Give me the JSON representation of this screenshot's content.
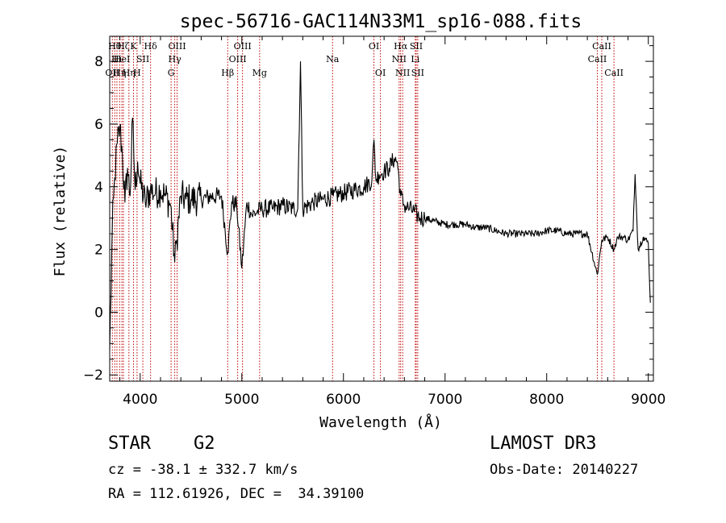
{
  "chart_data": {
    "type": "line",
    "title": "spec-56716-GAC114N33M1_sp16-088.fits",
    "xlabel": "Wavelength (Å)",
    "ylabel": "Flux (relative)",
    "xlim": [
      3700,
      9050
    ],
    "ylim": [
      -2.2,
      8.8
    ],
    "x_ticks": [
      4000,
      5000,
      6000,
      7000,
      8000,
      9000
    ],
    "y_ticks": [
      -2,
      0,
      2,
      4,
      6,
      8
    ],
    "grid": false,
    "series": [
      {
        "name": "flux",
        "color": "#000000",
        "x": [
          3700,
          3725,
          3750,
          3775,
          3800,
          3825,
          3850,
          3875,
          3900,
          3925,
          3950,
          3975,
          4000,
          4050,
          4100,
          4150,
          4200,
          4250,
          4300,
          4340,
          4360,
          4400,
          4450,
          4500,
          4600,
          4700,
          4800,
          4861,
          4900,
          4950,
          5000,
          5050,
          5100,
          5150,
          5200,
          5300,
          5400,
          5500,
          5550,
          5577,
          5600,
          5700,
          5800,
          5900,
          6000,
          6100,
          6200,
          6280,
          6300,
          6320,
          6350,
          6400,
          6450,
          6500,
          6530,
          6563,
          6600,
          6650,
          6700,
          6750,
          6800,
          6900,
          7000,
          7100,
          7200,
          7300,
          7400,
          7500,
          7600,
          7700,
          7800,
          7900,
          8000,
          8100,
          8200,
          8300,
          8400,
          8498,
          8542,
          8600,
          8662,
          8700,
          8750,
          8800,
          8850,
          8870,
          8900,
          8950,
          9000,
          9020
        ],
        "values": [
          -1.2,
          2.6,
          4.3,
          5.4,
          5.9,
          5.0,
          3.5,
          4.6,
          3.7,
          6.2,
          3.9,
          4.8,
          4.1,
          3.5,
          3.9,
          3.8,
          3.9,
          3.7,
          3.4,
          1.6,
          2.3,
          3.7,
          3.6,
          3.6,
          3.6,
          3.7,
          3.7,
          1.9,
          3.5,
          3.4,
          1.4,
          3.5,
          3.1,
          3.2,
          3.3,
          3.3,
          3.4,
          3.3,
          3.3,
          8.0,
          3.3,
          3.5,
          3.6,
          3.7,
          3.8,
          3.9,
          4.0,
          4.2,
          5.5,
          4.2,
          4.4,
          4.5,
          4.6,
          4.9,
          4.8,
          3.7,
          3.4,
          3.3,
          3.2,
          3.0,
          3.0,
          2.9,
          2.8,
          2.8,
          2.8,
          2.7,
          2.7,
          2.6,
          2.5,
          2.5,
          2.5,
          2.5,
          2.6,
          2.6,
          2.5,
          2.5,
          2.5,
          1.2,
          2.3,
          2.4,
          2.0,
          2.4,
          2.4,
          2.3,
          2.6,
          4.4,
          2.0,
          2.4,
          2.2,
          0.3
        ]
      }
    ],
    "lines": [
      {
        "x": 3726,
        "row": 3,
        "label": "OII"
      },
      {
        "x": 3750,
        "row": 1,
        "label": "Hθ"
      },
      {
        "x": 3771,
        "row": 2,
        "label": "Hι"
      },
      {
        "x": 3798,
        "row": 3,
        "label": "Hη"
      },
      {
        "x": 3820,
        "row": 2,
        "label": "HeI"
      },
      {
        "x": 3835,
        "row": 1,
        "label": "Hζ"
      },
      {
        "x": 3889,
        "row": 3,
        "label": "Hη"
      },
      {
        "x": 3934,
        "row": 1,
        "label": "K"
      },
      {
        "x": 3969,
        "row": 3,
        "label": "H"
      },
      {
        "x": 4026,
        "row": 2,
        "label": "SII"
      },
      {
        "x": 4102,
        "row": 1,
        "label": "Hδ"
      },
      {
        "x": 4304,
        "row": 3,
        "label": "G"
      },
      {
        "x": 4340,
        "row": 2,
        "label": "Hγ"
      },
      {
        "x": 4363,
        "row": 1,
        "label": "OIII"
      },
      {
        "x": 4861,
        "row": 3,
        "label": "Hβ"
      },
      {
        "x": 4959,
        "row": 2,
        "label": "OIII"
      },
      {
        "x": 5007,
        "row": 1,
        "label": "OIII"
      },
      {
        "x": 5175,
        "row": 3,
        "label": "Mg"
      },
      {
        "x": 5893,
        "row": 2,
        "label": "Na"
      },
      {
        "x": 6300,
        "row": 1,
        "label": "OI"
      },
      {
        "x": 6364,
        "row": 3,
        "label": "OI"
      },
      {
        "x": 6548,
        "row": 2,
        "label": "NII"
      },
      {
        "x": 6563,
        "row": 1,
        "label": "Hα"
      },
      {
        "x": 6583,
        "row": 3,
        "label": "NII"
      },
      {
        "x": 6707,
        "row": 2,
        "label": "Li"
      },
      {
        "x": 6716,
        "row": 1,
        "label": "SII"
      },
      {
        "x": 6731,
        "row": 3,
        "label": "SII"
      },
      {
        "x": 8498,
        "row": 2,
        "label": "CaII"
      },
      {
        "x": 8542,
        "row": 1,
        "label": "CaII"
      },
      {
        "x": 8662,
        "row": 3,
        "label": "CaII"
      }
    ]
  },
  "info": {
    "class_label": "STAR",
    "subclass": "G2",
    "cz_line": "cz = -38.1 ± 332.7 km/s",
    "radec_line": "RA = 112.61926, DEC =  34.39100",
    "survey": "LAMOST DR3",
    "obs_date_line": "Obs-Date: 20140227"
  }
}
